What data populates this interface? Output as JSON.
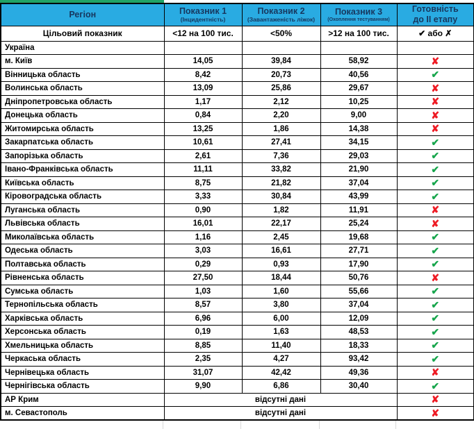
{
  "colors": {
    "header_bg": "#29ABE2",
    "header_text": "#17375E",
    "green": "#24A24C",
    "yellow": "#FFFF00",
    "gray": "#BFBFBF",
    "check": "#18A64D",
    "cross": "#EE1C25",
    "strip": "#21A366",
    "ghost": "#D9D9D9"
  },
  "marks": {
    "yes": "✔",
    "no": "✘"
  },
  "header": {
    "region": "Регіон",
    "p1_title": "Показник 1",
    "p1_sub": "(Інцидентність)",
    "p2_title": "Показник 2",
    "p2_sub": "(Завантаженість ліжок)",
    "p3_title": "Показник 3",
    "p3_sub": "(Охоплення тестуванням)",
    "ready_line1": "Готовність",
    "ready_line2": "до ІІ етапу"
  },
  "target": {
    "label": "Цільовий показник",
    "p1": "<12 на 100 тис.",
    "p2": "<50%",
    "p3": ">12 на 100 тис.",
    "ready": "✔ або ✗"
  },
  "rows": [
    {
      "region": "Україна",
      "p1": "",
      "c1": "green",
      "p2": "",
      "c2": "green",
      "p3": "",
      "c3": "yellow",
      "ready": "",
      "c_ready": "gray"
    },
    {
      "region": "м. Київ",
      "p1": "14,05",
      "c1": "yellow",
      "p2": "39,84",
      "c2": "green",
      "p3": "58,92",
      "c3": "green",
      "ready": "no"
    },
    {
      "region": "Вінницька область",
      "p1": "8,42",
      "c1": "green",
      "p2": "20,73",
      "c2": "green",
      "p3": "40,56",
      "c3": "green",
      "ready": "yes"
    },
    {
      "region": "Волинська область",
      "p1": "13,09",
      "c1": "yellow",
      "p2": "25,86",
      "c2": "green",
      "p3": "29,67",
      "c3": "green",
      "ready": "no"
    },
    {
      "region": "Дніпропетровська область",
      "p1": "1,17",
      "c1": "green",
      "p2": "2,12",
      "c2": "green",
      "p3": "10,25",
      "c3": "yellow",
      "ready": "no"
    },
    {
      "region": "Донецька область",
      "p1": "0,84",
      "c1": "green",
      "p2": "2,20",
      "c2": "green",
      "p3": "9,00",
      "c3": "yellow",
      "ready": "no"
    },
    {
      "region": "Житомирська область",
      "p1": "13,25",
      "c1": "yellow",
      "p2": "1,86",
      "c2": "green",
      "p3": "14,38",
      "c3": "green",
      "ready": "no"
    },
    {
      "region": "Закарпатська область",
      "p1": "10,61",
      "c1": "green",
      "p2": "27,41",
      "c2": "green",
      "p3": "34,15",
      "c3": "green",
      "ready": "yes"
    },
    {
      "region": "Запорізька область",
      "p1": "2,61",
      "c1": "green",
      "p2": "7,36",
      "c2": "green",
      "p3": "29,03",
      "c3": "green",
      "ready": "yes"
    },
    {
      "region": "Івано-Франківська область",
      "p1": "11,11",
      "c1": "green",
      "p2": "33,82",
      "c2": "green",
      "p3": "21,90",
      "c3": "green",
      "ready": "yes"
    },
    {
      "region": "Київська область",
      "p1": "8,75",
      "c1": "green",
      "p2": "21,82",
      "c2": "green",
      "p3": "37,04",
      "c3": "green",
      "ready": "yes"
    },
    {
      "region": "Кіровоградська область",
      "p1": "3,33",
      "c1": "green",
      "p2": "30,84",
      "c2": "green",
      "p3": "43,99",
      "c3": "green",
      "ready": "yes"
    },
    {
      "region": "Луганська область",
      "p1": "0,90",
      "c1": "green",
      "p2": "1,82",
      "c2": "green",
      "p3": "11,91",
      "c3": "yellow",
      "ready": "no"
    },
    {
      "region": "Львівська область",
      "p1": "16,01",
      "c1": "yellow",
      "p2": "22,17",
      "c2": "green",
      "p3": "25,24",
      "c3": "green",
      "ready": "no"
    },
    {
      "region": "Миколаївська область",
      "p1": "1,16",
      "c1": "green",
      "p2": "2,45",
      "c2": "green",
      "p3": "19,68",
      "c3": "green",
      "ready": "yes"
    },
    {
      "region": "Одеська область",
      "p1": "3,03",
      "c1": "green",
      "p2": "16,61",
      "c2": "green",
      "p3": "27,71",
      "c3": "green",
      "ready": "yes"
    },
    {
      "region": "Полтавська область",
      "p1": "0,29",
      "c1": "green",
      "p2": "0,93",
      "c2": "green",
      "p3": "17,90",
      "c3": "green",
      "ready": "yes"
    },
    {
      "region": "Рівненська область",
      "p1": "27,50",
      "c1": "yellow",
      "p2": "18,44",
      "c2": "green",
      "p3": "50,76",
      "c3": "green",
      "ready": "no"
    },
    {
      "region": "Сумська область",
      "p1": "1,03",
      "c1": "green",
      "p2": "1,60",
      "c2": "green",
      "p3": "55,66",
      "c3": "green",
      "ready": "yes"
    },
    {
      "region": "Тернопільська область",
      "p1": "8,57",
      "c1": "green",
      "p2": "3,80",
      "c2": "green",
      "p3": "37,04",
      "c3": "green",
      "ready": "yes"
    },
    {
      "region": "Харківська область",
      "p1": "6,96",
      "c1": "green",
      "p2": "6,00",
      "c2": "green",
      "p3": "12,09",
      "c3": "green",
      "ready": "yes"
    },
    {
      "region": "Херсонська область",
      "p1": "0,19",
      "c1": "green",
      "p2": "1,63",
      "c2": "green",
      "p3": "48,53",
      "c3": "green",
      "ready": "yes"
    },
    {
      "region": "Хмельницька область",
      "p1": "8,85",
      "c1": "green",
      "p2": "11,40",
      "c2": "green",
      "p3": "18,33",
      "c3": "green",
      "ready": "yes"
    },
    {
      "region": "Черкаська область",
      "p1": "2,35",
      "c1": "green",
      "p2": "4,27",
      "c2": "green",
      "p3": "93,42",
      "c3": "green",
      "ready": "yes"
    },
    {
      "region": "Чернівецька область",
      "p1": "31,07",
      "c1": "yellow",
      "p2": "42,42",
      "c2": "green",
      "p3": "49,36",
      "c3": "green",
      "ready": "no"
    },
    {
      "region": "Чернігівська область",
      "p1": "9,90",
      "c1": "green",
      "p2": "6,86",
      "c2": "green",
      "p3": "30,40",
      "c3": "green",
      "ready": "yes"
    },
    {
      "region": "АР Крим",
      "merged": "відсутні дані",
      "ready": "no"
    },
    {
      "region": "м. Севастополь",
      "merged": "відсутні дані",
      "ready": "no"
    }
  ]
}
